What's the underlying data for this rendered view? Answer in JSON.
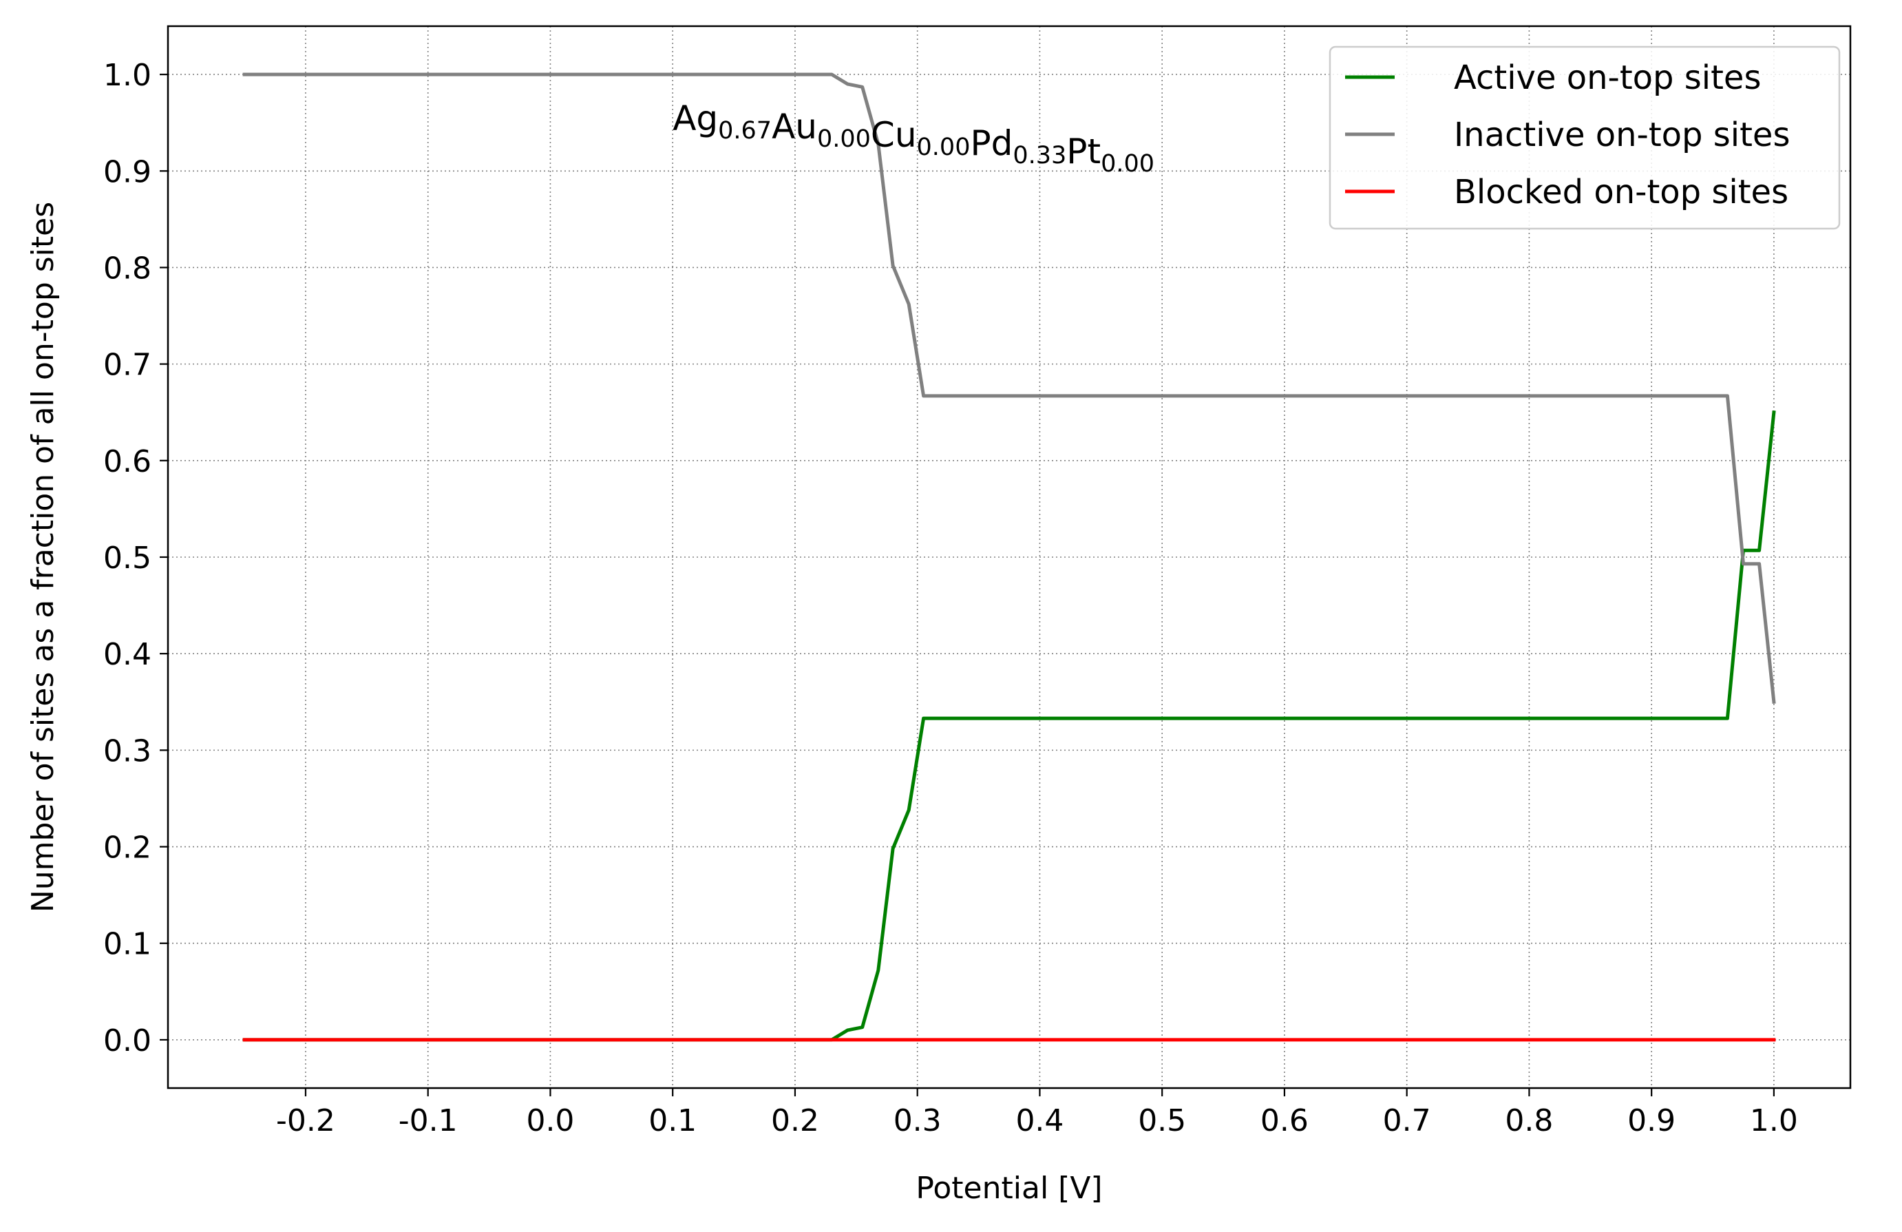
{
  "chart_data": {
    "type": "line",
    "xlabel": "Potential [V]",
    "ylabel": "Number of sites as a fraction of all on-top sites",
    "xlim": [
      -0.3125,
      1.0625
    ],
    "ylim": [
      -0.05,
      1.05
    ],
    "xticks": [
      -0.2,
      -0.1,
      0.0,
      0.1,
      0.2,
      0.3,
      0.4,
      0.5,
      0.6,
      0.7,
      0.8,
      0.9,
      1.0
    ],
    "xtick_labels": [
      "-0.2",
      "-0.1",
      "0.0",
      "0.1",
      "0.2",
      "0.3",
      "0.4",
      "0.5",
      "0.6",
      "0.7",
      "0.8",
      "0.9",
      "1.0"
    ],
    "yticks": [
      0.0,
      0.1,
      0.2,
      0.3,
      0.4,
      0.5,
      0.6,
      0.7,
      0.8,
      0.9,
      1.0
    ],
    "ytick_labels": [
      "0.0",
      "0.1",
      "0.2",
      "0.3",
      "0.4",
      "0.5",
      "0.6",
      "0.7",
      "0.8",
      "0.9",
      "1.0"
    ],
    "grid": true,
    "legend_position": "top-right",
    "annotation": {
      "segments": [
        {
          "base": "Ag",
          "sub": "0.67"
        },
        {
          "base": "Au",
          "sub": "0.00"
        },
        {
          "base": "Cu",
          "sub": "0.00"
        },
        {
          "base": "Pd",
          "sub": "0.33"
        },
        {
          "base": "Pt",
          "sub": "0.00"
        }
      ],
      "x": 0.1,
      "y": 0.955
    },
    "series": [
      {
        "name": "Active on-top sites",
        "color": "#008000",
        "x": [
          -0.25,
          0.2,
          0.23,
          0.243,
          0.255,
          0.268,
          0.28,
          0.293,
          0.305,
          0.5,
          0.962,
          0.975,
          0.988,
          1.0
        ],
        "y": [
          0.0,
          0.0,
          0.0,
          0.01,
          0.013,
          0.072,
          0.198,
          0.238,
          0.333,
          0.333,
          0.333,
          0.507,
          0.507,
          0.65
        ]
      },
      {
        "name": "Inactive on-top sites",
        "color": "#808080",
        "x": [
          -0.25,
          0.2,
          0.23,
          0.243,
          0.255,
          0.268,
          0.28,
          0.293,
          0.305,
          0.5,
          0.962,
          0.975,
          0.988,
          1.0
        ],
        "y": [
          1.0,
          1.0,
          1.0,
          0.99,
          0.987,
          0.928,
          0.802,
          0.762,
          0.667,
          0.667,
          0.667,
          0.493,
          0.493,
          0.35
        ]
      },
      {
        "name": "Blocked on-top sites",
        "color": "#ff0000",
        "x": [
          -0.25,
          1.0
        ],
        "y": [
          0.0,
          0.0
        ]
      }
    ]
  }
}
